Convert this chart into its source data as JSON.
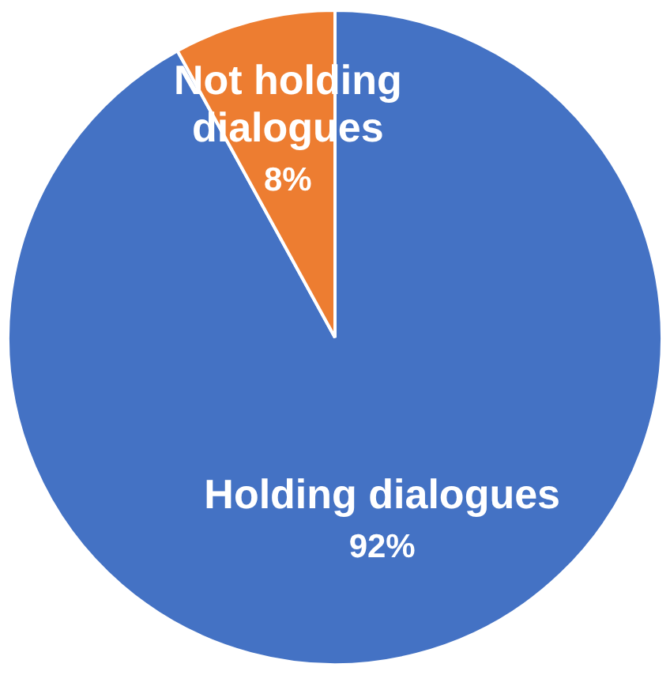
{
  "chart_data": {
    "type": "pie",
    "categories": [
      "Holding dialogues",
      "Not holding dialogues"
    ],
    "values": [
      92,
      8
    ],
    "colors": [
      "#4472c4",
      "#ed7d31"
    ],
    "value_labels": [
      "92%",
      "8%"
    ]
  }
}
